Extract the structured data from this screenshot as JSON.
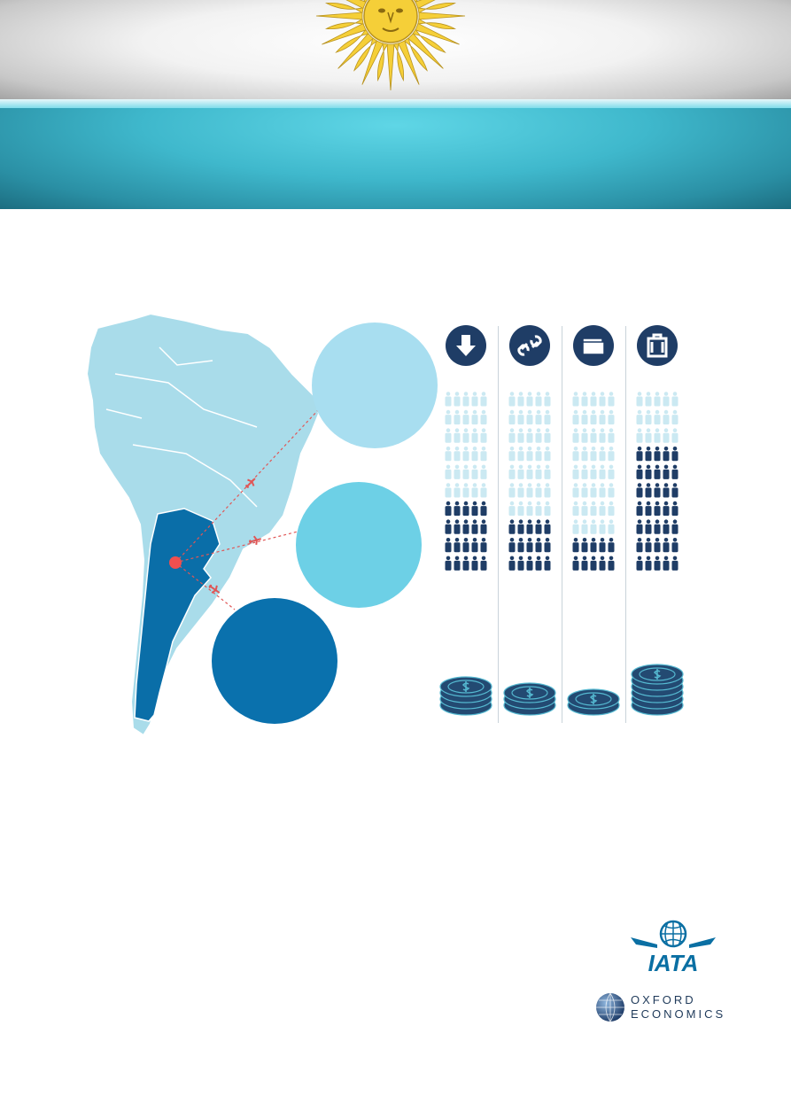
{
  "banner": {
    "colors": {
      "sun": "#f5cf38",
      "blue": "#3fb8cc",
      "white": "#ffffff"
    }
  },
  "map": {
    "colors": {
      "land": "#a9dcea",
      "highlight": "#0a6ea8",
      "marker": "#ef4f4f",
      "route": "#e05656"
    },
    "icons": [
      "plane-icon",
      "plane-icon",
      "plane-icon"
    ]
  },
  "bubbles": [
    {
      "name": "bubble-light",
      "color": "#a8def0"
    },
    {
      "name": "bubble-medium",
      "color": "#6dd0e6"
    },
    {
      "name": "bubble-dark",
      "color": "#0a71ad"
    }
  ],
  "columns": [
    {
      "icon": "arrow-down-icon",
      "people_filled_rows": 4,
      "coin_stack": 4
    },
    {
      "icon": "link-icon",
      "people_filled_rows": 3,
      "coin_stack": 3
    },
    {
      "icon": "wallet-icon",
      "people_filled_rows": 2,
      "coin_stack": 2
    },
    {
      "icon": "luggage-icon",
      "people_filled_rows": 7,
      "coin_stack": 6
    }
  ],
  "colors": {
    "people_filled": "#1f3d66",
    "people_empty": "#cbe9f2",
    "coin": "#234a72",
    "coin_rim": "#55b9d1"
  },
  "logos": {
    "iata": {
      "text": "IATA",
      "color": "#0a6fa3"
    },
    "oxford": {
      "line1": "OXFORD",
      "line2": "ECONOMICS"
    }
  }
}
